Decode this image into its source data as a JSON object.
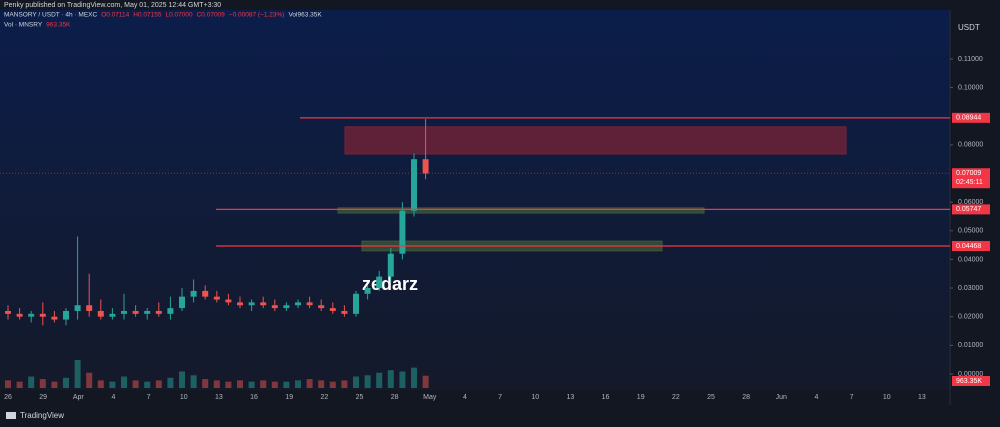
{
  "header": {
    "published": "Penky published on TradingView.com, May 01, 2025 12:44 GMT+3:30",
    "symbol": "MANSORY / USDT · 4h · MEXC",
    "ohlc": [
      "O0.07114",
      "H0.07155",
      "L0.07000",
      "C0.07009"
    ],
    "change": "−0.00087 (−1.23%)",
    "volume": "Vol963.35K",
    "vol_indicator": "Vol · MNSRY",
    "vol_value": "963.35K"
  },
  "currency": "USDT",
  "watermark": "zedarz",
  "footer": "TradingView",
  "chart_data": {
    "type": "candlestick",
    "ylim": [
      -0.0049,
      0.1264
    ],
    "yticks": [
      {
        "value": 0.11,
        "label": "0.11000"
      },
      {
        "value": 0.1,
        "label": "0.10000"
      },
      {
        "value": 0.08,
        "label": "0.08000"
      },
      {
        "value": 0.06,
        "label": "0.06000"
      },
      {
        "value": 0.05,
        "label": "0.05000"
      },
      {
        "value": 0.04,
        "label": "0.04000"
      },
      {
        "value": 0.03,
        "label": "0.03000"
      },
      {
        "value": 0.02,
        "label": "0.02000"
      },
      {
        "value": 0.01,
        "label": "0.01000"
      },
      {
        "value": 0,
        "label": "0.00000"
      }
    ],
    "x_labels": [
      "26",
      "29",
      "Apr",
      "4",
      "7",
      "10",
      "13",
      "16",
      "19",
      "22",
      "25",
      "28",
      "May",
      "4",
      "7",
      "10",
      "13",
      "16",
      "19",
      "22",
      "25",
      "28",
      "Jun",
      "4",
      "7",
      "10",
      "13"
    ],
    "open": [
      0.022,
      0.021,
      0.02,
      0.021,
      0.02,
      0.019,
      0.022,
      0.024,
      0.022,
      0.02,
      0.021,
      0.022,
      0.021,
      0.022,
      0.021,
      0.023,
      0.027,
      0.029,
      0.027,
      0.026,
      0.025,
      0.024,
      0.025,
      0.024,
      0.023,
      0.024,
      0.025,
      0.024,
      0.023,
      0.022,
      0.021,
      0.028,
      0.03,
      0.034,
      0.042,
      0.057,
      0.075
    ],
    "high": [
      0.024,
      0.023,
      0.022,
      0.025,
      0.022,
      0.023,
      0.048,
      0.035,
      0.026,
      0.023,
      0.028,
      0.024,
      0.023,
      0.025,
      0.027,
      0.03,
      0.033,
      0.031,
      0.029,
      0.028,
      0.027,
      0.026,
      0.027,
      0.026,
      0.025,
      0.026,
      0.027,
      0.026,
      0.025,
      0.024,
      0.029,
      0.031,
      0.036,
      0.044,
      0.06,
      0.077,
      0.089
    ],
    "low": [
      0.019,
      0.019,
      0.018,
      0.017,
      0.018,
      0.017,
      0.019,
      0.02,
      0.019,
      0.019,
      0.019,
      0.02,
      0.019,
      0.02,
      0.019,
      0.022,
      0.025,
      0.026,
      0.025,
      0.024,
      0.023,
      0.022,
      0.023,
      0.022,
      0.022,
      0.023,
      0.023,
      0.022,
      0.021,
      0.02,
      0.02,
      0.026,
      0.029,
      0.032,
      0.04,
      0.055,
      0.068
    ],
    "close": [
      0.021,
      0.02,
      0.021,
      0.02,
      0.019,
      0.022,
      0.024,
      0.022,
      0.02,
      0.021,
      0.022,
      0.021,
      0.022,
      0.021,
      0.023,
      0.027,
      0.029,
      0.027,
      0.026,
      0.025,
      0.024,
      0.025,
      0.024,
      0.023,
      0.024,
      0.025,
      0.024,
      0.023,
      0.022,
      0.021,
      0.028,
      0.03,
      0.034,
      0.042,
      0.057,
      0.075,
      0.07
    ],
    "volume": [
      600,
      500,
      900,
      700,
      500,
      800,
      2200,
      1200,
      600,
      500,
      900,
      600,
      500,
      600,
      800,
      1300,
      1000,
      700,
      600,
      500,
      600,
      500,
      600,
      500,
      500,
      600,
      700,
      600,
      500,
      600,
      900,
      1000,
      1200,
      1400,
      1300,
      1600,
      963.35
    ],
    "levels": [
      {
        "value": 0.08944,
        "label": "0.08944",
        "color": "#f23645"
      },
      {
        "value": 0.05747,
        "label": "0.05747",
        "color": "#f23645"
      },
      {
        "value": 0.04468,
        "label": "0.04468",
        "color": "#f23645"
      }
    ],
    "last_price": {
      "value": 0.07009,
      "label": "0.07009",
      "countdown": "02:45:11"
    },
    "zones": [
      {
        "from": 0.0768,
        "to": 0.0863,
        "color": "#7a2335"
      },
      {
        "from": 0.0562,
        "to": 0.058,
        "color": "#3e5a3a"
      },
      {
        "from": 0.043,
        "to": 0.0464,
        "color": "#3e5a3a"
      }
    ]
  }
}
